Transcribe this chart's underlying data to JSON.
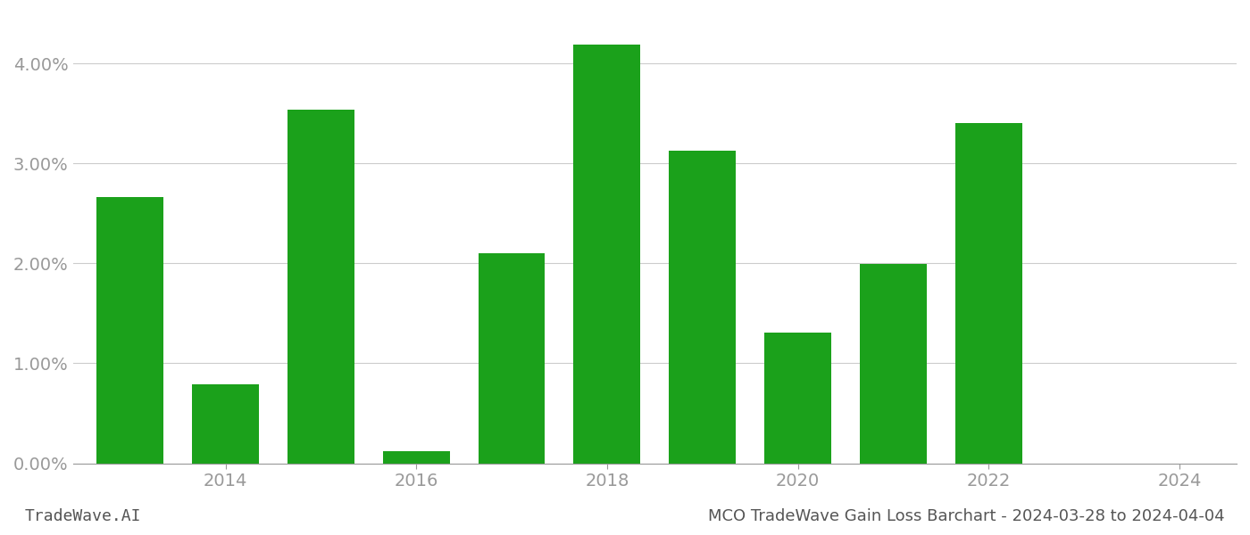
{
  "bar_years": [
    2013,
    2014,
    2015,
    2016,
    2017,
    2018,
    2019,
    2020,
    2021,
    2022,
    2023
  ],
  "values": [
    0.0266,
    0.0079,
    0.0354,
    0.0012,
    0.021,
    0.0419,
    0.0313,
    0.0131,
    0.0199,
    0.034,
    0.0
  ],
  "bar_color": "#1ba11b",
  "background_color": "#ffffff",
  "grid_color": "#cccccc",
  "axis_color": "#999999",
  "tick_label_color": "#999999",
  "ylim": [
    0.0,
    0.045
  ],
  "yticks": [
    0.0,
    0.01,
    0.02,
    0.03,
    0.04
  ],
  "xticks": [
    2014,
    2016,
    2018,
    2020,
    2022,
    2024
  ],
  "xlim": [
    2012.4,
    2024.6
  ],
  "footer_left": "TradeWave.AI",
  "footer_right": "MCO TradeWave Gain Loss Barchart - 2024-03-28 to 2024-04-04",
  "footer_color": "#555555",
  "bar_width": 0.7
}
